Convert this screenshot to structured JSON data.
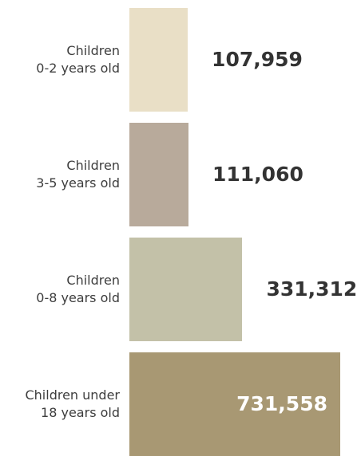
{
  "chart_data": {
    "type": "bar",
    "orientation": "horizontal",
    "categories": [
      [
        "Children",
        "0-2 years old"
      ],
      [
        "Children",
        "3-5 years old"
      ],
      [
        "Children",
        "0-8 years old"
      ],
      [
        "Children under",
        "18 years old"
      ]
    ],
    "values": [
      107959,
      111060,
      331312,
      731558
    ],
    "value_labels": [
      "107,959",
      "111,060",
      "331,312",
      "731,558"
    ],
    "bar_colors": [
      "#e9dfc6",
      "#b8aa9b",
      "#c3c1a8",
      "#a89873"
    ],
    "value_label_colors": [
      "#333333",
      "#333333",
      "#333333",
      "#ffffff"
    ],
    "value_label_position": [
      "outside",
      "outside",
      "outside",
      "inside"
    ],
    "xlim": [
      0,
      731558
    ],
    "title": "",
    "xlabel": "",
    "ylabel": "",
    "grid": false,
    "legend": "none"
  }
}
